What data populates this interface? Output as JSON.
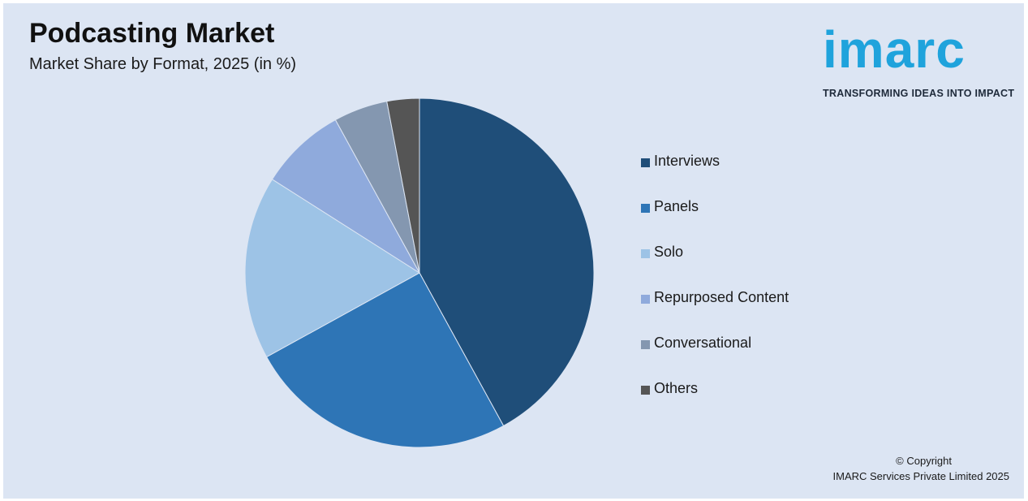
{
  "header": {
    "title": "Podcasting Market",
    "subtitle": "Market Share by Format, 2025 (in %)"
  },
  "logo": {
    "wordmark": "imarc",
    "tagline": "TRANSFORMING IDEAS INTO IMPACT",
    "color": "#1fa3dc"
  },
  "chart_data": {
    "type": "pie",
    "title": "Podcasting Market",
    "subtitle": "Market Share by Format, 2025 (in %)",
    "categories": [
      "Interviews",
      "Panels",
      "Solo",
      "Repurposed Content",
      "Conversational",
      "Others"
    ],
    "values": [
      42,
      25,
      17,
      8,
      5,
      3
    ],
    "colors": [
      "#1f4e79",
      "#2e75b6",
      "#9dc3e6",
      "#8faadc",
      "#8497b0",
      "#555555"
    ],
    "legend_position": "right"
  },
  "legend": {
    "items": [
      {
        "label": "Interviews",
        "color": "#1f4e79"
      },
      {
        "label": "Panels",
        "color": "#2e75b6"
      },
      {
        "label": "Solo",
        "color": "#9dc3e6"
      },
      {
        "label": "Repurposed Content",
        "color": "#8faadc"
      },
      {
        "label": "Conversational",
        "color": "#8497b0"
      },
      {
        "label": "Others",
        "color": "#555555"
      }
    ]
  },
  "footer": {
    "copyright_line1": "© Copyright",
    "copyright_line2": "IMARC Services Private Limited 2025"
  }
}
